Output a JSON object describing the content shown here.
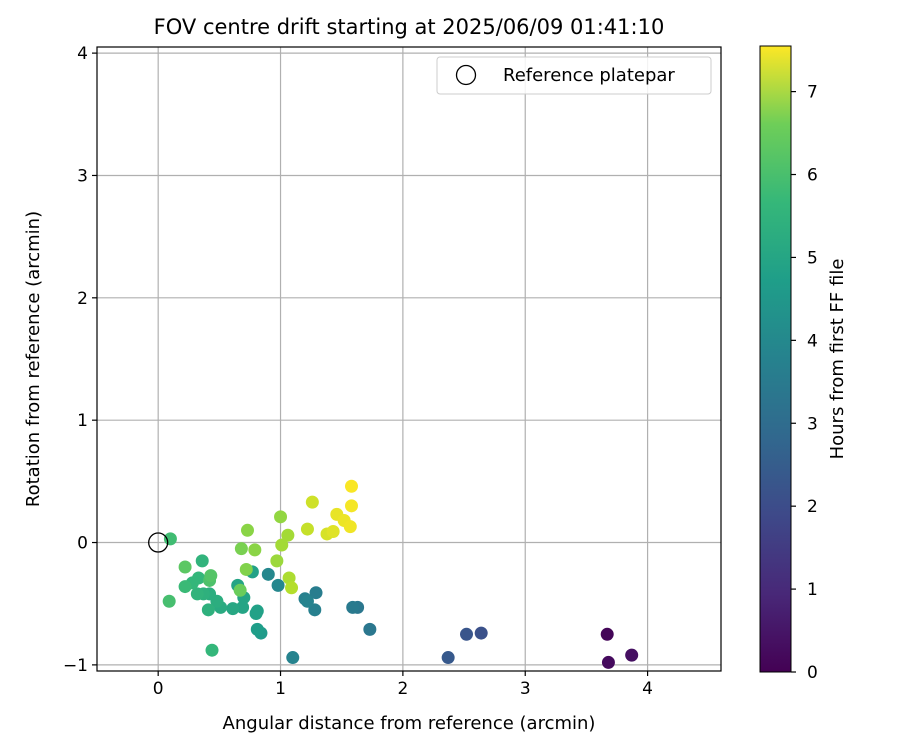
{
  "chart_data": {
    "type": "scatter",
    "title": "FOV centre drift starting at 2025/06/09 01:41:10",
    "xlabel": "Angular distance from reference (arcmin)",
    "ylabel": "Rotation from reference (arcmin)",
    "xlim": [
      -0.5,
      4.6
    ],
    "ylim": [
      -1.05,
      4.05
    ],
    "xticks": [
      0,
      1,
      2,
      3,
      4
    ],
    "yticks": [
      -1,
      0,
      1,
      2,
      3,
      4
    ],
    "grid": true,
    "legend": {
      "placement": "top-right",
      "entries": [
        "Reference platepar"
      ]
    },
    "reference_point": {
      "x": 0,
      "y": 0
    },
    "colorbar": {
      "label": "Hours from first FF file",
      "colormap": "viridis",
      "range": [
        0,
        7.55
      ],
      "ticks": [
        0,
        1,
        2,
        3,
        4,
        5,
        6,
        7
      ]
    },
    "points": [
      {
        "x": 3.67,
        "y": -0.75,
        "hours": 0.1
      },
      {
        "x": 3.68,
        "y": -0.98,
        "hours": 0.2
      },
      {
        "x": 3.87,
        "y": -0.92,
        "hours": 0.3
      },
      {
        "x": 2.64,
        "y": -0.74,
        "hours": 1.9
      },
      {
        "x": 2.52,
        "y": -0.75,
        "hours": 2.0
      },
      {
        "x": 2.37,
        "y": -0.94,
        "hours": 2.1
      },
      {
        "x": 1.73,
        "y": -0.71,
        "hours": 3.0
      },
      {
        "x": 1.63,
        "y": -0.53,
        "hours": 3.0
      },
      {
        "x": 1.59,
        "y": -0.53,
        "hours": 3.1
      },
      {
        "x": 1.29,
        "y": -0.41,
        "hours": 3.2
      },
      {
        "x": 1.28,
        "y": -0.55,
        "hours": 3.3
      },
      {
        "x": 1.2,
        "y": -0.46,
        "hours": 3.3
      },
      {
        "x": 1.22,
        "y": -0.48,
        "hours": 3.4
      },
      {
        "x": 1.1,
        "y": -0.94,
        "hours": 3.4
      },
      {
        "x": 0.98,
        "y": -0.35,
        "hours": 3.5
      },
      {
        "x": 0.9,
        "y": -0.26,
        "hours": 3.5
      },
      {
        "x": 0.84,
        "y": -0.74,
        "hours": 4.1
      },
      {
        "x": 0.81,
        "y": -0.71,
        "hours": 4.2
      },
      {
        "x": 0.8,
        "y": -0.58,
        "hours": 4.3
      },
      {
        "x": 0.81,
        "y": -0.56,
        "hours": 4.3
      },
      {
        "x": 0.77,
        "y": -0.24,
        "hours": 4.3
      },
      {
        "x": 0.7,
        "y": -0.45,
        "hours": 4.4
      },
      {
        "x": 0.69,
        "y": -0.53,
        "hours": 4.4
      },
      {
        "x": 0.65,
        "y": -0.35,
        "hours": 4.4
      },
      {
        "x": 0.61,
        "y": -0.54,
        "hours": 4.5
      },
      {
        "x": 0.51,
        "y": -0.53,
        "hours": 4.6
      },
      {
        "x": 0.48,
        "y": -0.48,
        "hours": 4.7
      },
      {
        "x": 0.42,
        "y": -0.42,
        "hours": 4.7
      },
      {
        "x": 0.41,
        "y": -0.55,
        "hours": 4.8
      },
      {
        "x": 0.37,
        "y": -0.42,
        "hours": 4.8
      },
      {
        "x": 0.32,
        "y": -0.42,
        "hours": 4.9
      },
      {
        "x": 0.36,
        "y": -0.15,
        "hours": 4.9
      },
      {
        "x": 0.33,
        "y": -0.29,
        "hours": 5.0
      },
      {
        "x": 0.28,
        "y": -0.33,
        "hours": 5.0
      },
      {
        "x": 0.44,
        "y": -0.88,
        "hours": 5.0
      },
      {
        "x": 0.22,
        "y": -0.36,
        "hours": 5.1
      },
      {
        "x": 0.1,
        "y": 0.03,
        "hours": 5.2
      },
      {
        "x": 0.09,
        "y": -0.48,
        "hours": 5.3
      },
      {
        "x": 0.42,
        "y": -0.31,
        "hours": 5.4
      },
      {
        "x": 0.43,
        "y": -0.27,
        "hours": 5.5
      },
      {
        "x": 0.22,
        "y": -0.2,
        "hours": 5.6
      },
      {
        "x": 0.67,
        "y": -0.39,
        "hours": 5.8
      },
      {
        "x": 0.68,
        "y": -0.05,
        "hours": 6.0
      },
      {
        "x": 0.72,
        "y": -0.22,
        "hours": 6.1
      },
      {
        "x": 0.73,
        "y": 0.1,
        "hours": 6.2
      },
      {
        "x": 0.79,
        "y": -0.06,
        "hours": 6.2
      },
      {
        "x": 1.0,
        "y": 0.21,
        "hours": 6.3
      },
      {
        "x": 0.97,
        "y": -0.15,
        "hours": 6.4
      },
      {
        "x": 1.01,
        "y": -0.02,
        "hours": 6.5
      },
      {
        "x": 1.06,
        "y": 0.06,
        "hours": 6.5
      },
      {
        "x": 1.07,
        "y": -0.29,
        "hours": 6.6
      },
      {
        "x": 1.09,
        "y": -0.37,
        "hours": 6.7
      },
      {
        "x": 1.22,
        "y": 0.11,
        "hours": 6.9
      },
      {
        "x": 1.26,
        "y": 0.33,
        "hours": 7.0
      },
      {
        "x": 1.38,
        "y": 0.07,
        "hours": 7.1
      },
      {
        "x": 1.43,
        "y": 0.09,
        "hours": 7.2
      },
      {
        "x": 1.46,
        "y": 0.23,
        "hours": 7.3
      },
      {
        "x": 1.52,
        "y": 0.18,
        "hours": 7.35
      },
      {
        "x": 1.57,
        "y": 0.13,
        "hours": 7.4
      },
      {
        "x": 1.58,
        "y": 0.3,
        "hours": 7.45
      },
      {
        "x": 1.58,
        "y": 0.46,
        "hours": 7.5
      }
    ]
  }
}
